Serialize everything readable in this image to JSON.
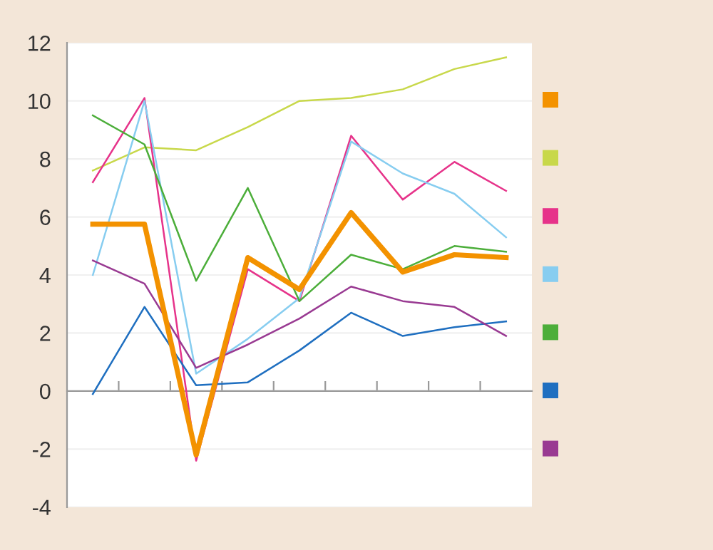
{
  "chart_data": {
    "type": "line",
    "categories": [
      null,
      null,
      null,
      null,
      null,
      null,
      null,
      null,
      null
    ],
    "series": [
      {
        "color": "#f39200",
        "values": [
          5.75,
          5.75,
          -2.2,
          4.6,
          3.5,
          6.15,
          4.1,
          4.7,
          4.6
        ]
      },
      {
        "color": "#c8d84a",
        "values": [
          7.6,
          8.4,
          8.3,
          9.1,
          10.0,
          10.1,
          10.4,
          11.1,
          11.5
        ]
      },
      {
        "color": "#e6338a",
        "values": [
          7.2,
          10.1,
          -2.4,
          4.2,
          3.1,
          8.8,
          6.6,
          7.9,
          6.9
        ]
      },
      {
        "color": "#87cdf0",
        "values": [
          4.0,
          10.0,
          0.6,
          1.8,
          3.2,
          8.6,
          7.5,
          6.8,
          5.3
        ]
      },
      {
        "color": "#4cae3a",
        "values": [
          9.5,
          8.5,
          3.8,
          7.0,
          3.1,
          4.7,
          4.2,
          5.0,
          4.8
        ]
      },
      {
        "color": "#1f6fc0",
        "values": [
          -0.1,
          2.9,
          0.2,
          0.3,
          1.4,
          2.7,
          1.9,
          2.2,
          2.4
        ]
      },
      {
        "color": "#993a92",
        "values": [
          4.5,
          3.7,
          0.8,
          1.6,
          2.5,
          3.6,
          3.1,
          2.9,
          1.9
        ]
      }
    ],
    "ylim": [
      -4,
      12
    ],
    "yticks": [
      -4,
      -2,
      0,
      2,
      4,
      6,
      8,
      10,
      12
    ],
    "grid": "y",
    "marker": "none",
    "line_style": "solid"
  }
}
